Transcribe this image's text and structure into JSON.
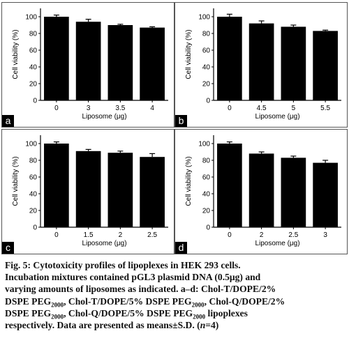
{
  "chart_data": [
    {
      "type": "bar",
      "panel": "a",
      "categories": [
        "0",
        "3",
        "3.5",
        "4"
      ],
      "values": [
        100,
        94,
        90,
        87
      ],
      "errors": [
        2,
        3,
        1,
        1
      ],
      "xlabel": "Liposome (μg)",
      "ylabel": "Cell viability (%)",
      "ylim": [
        0,
        110
      ],
      "yticks": [
        "0",
        "20",
        "40",
        "60",
        "80",
        "100"
      ]
    },
    {
      "type": "bar",
      "panel": "b",
      "categories": [
        "0",
        "4.5",
        "5",
        "5.5"
      ],
      "values": [
        100,
        92,
        88,
        83
      ],
      "errors": [
        3,
        3,
        2,
        1
      ],
      "xlabel": "Liposome (μg)",
      "ylabel": "Cell viability (%)",
      "ylim": [
        0,
        110
      ],
      "yticks": [
        "0",
        "20",
        "40",
        "60",
        "80",
        "100"
      ]
    },
    {
      "type": "bar",
      "panel": "c",
      "categories": [
        "0",
        "1.5",
        "2",
        "2.5"
      ],
      "values": [
        100,
        91,
        89,
        84
      ],
      "errors": [
        2,
        2,
        2,
        4
      ],
      "xlabel": "Liposome (μg)",
      "ylabel": "Cell viability (%)",
      "ylim": [
        0,
        110
      ],
      "yticks": [
        "0",
        "20",
        "40",
        "60",
        "80",
        "100"
      ]
    },
    {
      "type": "bar",
      "panel": "d",
      "categories": [
        "0",
        "2",
        "2.5",
        "3"
      ],
      "values": [
        100,
        88,
        83,
        77
      ],
      "errors": [
        2,
        2,
        2,
        3
      ],
      "xlabel": "Liposome (μg)",
      "ylabel": "Cell viability (%)",
      "ylim": [
        0,
        110
      ],
      "yticks": [
        "0",
        "20",
        "40",
        "60",
        "80",
        "100"
      ]
    }
  ],
  "caption": {
    "title": "Fig. 5: Cytotoxicity profiles of lipoplexes in HEK 293 cells.",
    "line2": "Incubation mixtures contained pGL3 plasmid DNA (0.5μg) and",
    "line3": "varying amounts of liposomes as indicated. a–d: Chol-T/DOPE/2%",
    "line4a": "DSPE PEG",
    "line4b": ", Chol-T/DOPE/5% DSPE PEG",
    "line4c": ", Chol-Q/DOPE/2%",
    "line5a": "DSPE PEG",
    "line5b": ", Chol-Q/DOPE/5% DSPE PEG",
    "line5c": " lipoplexes",
    "sub": "2000",
    "line6a": "respectively. Data are presented as means±S.D. (",
    "line6n": "n",
    "line6b": "=4)"
  }
}
